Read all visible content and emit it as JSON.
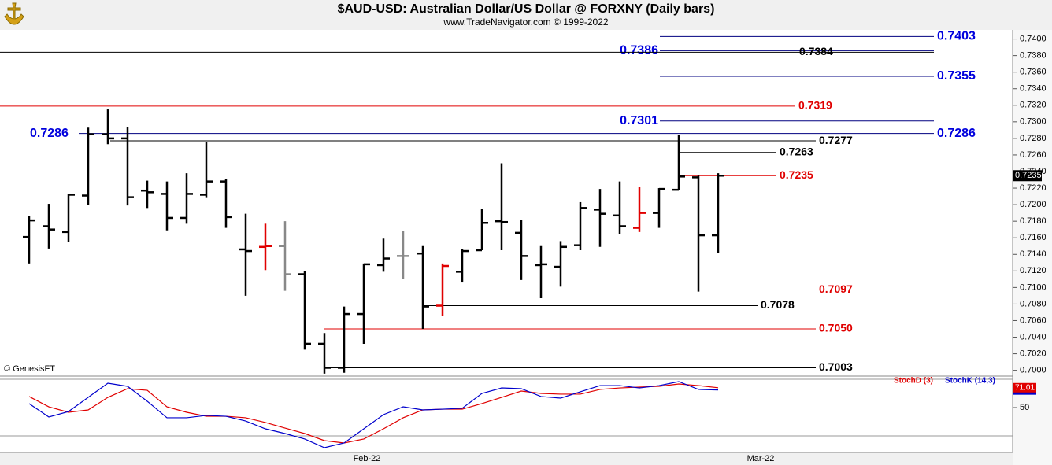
{
  "chart_data": [
    {
      "type": "ohlc",
      "title": "$AUD-USD:  Australian Dollar/US Dollar @ FORXNY  (Daily bars)",
      "subtitle": "www.TradeNavigator.com © 1999-2022",
      "credit": "© GenesisFT",
      "open": [
        0.7161,
        0.7174,
        0.7167,
        0.7211,
        0.7285,
        0.728,
        0.7217,
        0.7213,
        0.7184,
        0.7212,
        0.7228,
        0.7146,
        0.7149,
        0.715,
        0.7116,
        0.7032,
        0.7003,
        0.7068,
        0.7127,
        0.7138,
        0.7141,
        0.7078,
        0.7119,
        0.7145,
        0.718,
        0.7166,
        0.7127,
        0.7125,
        0.7151,
        0.7194,
        0.7187,
        0.7172,
        0.719,
        0.7218,
        0.7233,
        0.7163
      ],
      "high": [
        0.7186,
        0.7201,
        0.7213,
        0.7293,
        0.7315,
        0.7294,
        0.7229,
        0.7228,
        0.7238,
        0.7276,
        0.7231,
        0.7189,
        0.7177,
        0.718,
        0.712,
        0.7045,
        0.7077,
        0.7129,
        0.7159,
        0.7168,
        0.715,
        0.7129,
        0.7146,
        0.7195,
        0.725,
        0.7182,
        0.715,
        0.7156,
        0.7203,
        0.7219,
        0.7228,
        0.7221,
        0.722,
        0.7284,
        0.7235,
        0.7238
      ],
      "low": [
        0.7129,
        0.7147,
        0.7155,
        0.72,
        0.7273,
        0.7199,
        0.7196,
        0.7169,
        0.7177,
        0.7208,
        0.7172,
        0.709,
        0.7121,
        0.7096,
        0.7025,
        0.6996,
        0.6997,
        0.7032,
        0.7119,
        0.711,
        0.705,
        0.7066,
        0.7106,
        0.7145,
        0.7145,
        0.7109,
        0.7087,
        0.7101,
        0.7145,
        0.7149,
        0.7164,
        0.7167,
        0.7172,
        0.7218,
        0.7095,
        0.7142
      ],
      "close": [
        0.7181,
        0.717,
        0.7212,
        0.7285,
        0.728,
        0.7209,
        0.7215,
        0.7184,
        0.7213,
        0.7228,
        0.7185,
        0.7144,
        0.715,
        0.7116,
        0.7032,
        0.7003,
        0.7068,
        0.7128,
        0.7135,
        0.7138,
        0.7077,
        0.7126,
        0.7144,
        0.7178,
        0.7179,
        0.7138,
        0.7128,
        0.7149,
        0.7196,
        0.7189,
        0.7174,
        0.719,
        0.7219,
        0.7234,
        0.7163,
        0.7235
      ],
      "bar_colors": [
        "#000000",
        "#000000",
        "#000000",
        "#000000",
        "#000000",
        "#000000",
        "#000000",
        "#000000",
        "#000000",
        "#000000",
        "#000000",
        "#000000",
        "#e00000",
        "#888888",
        "#000000",
        "#000000",
        "#000000",
        "#000000",
        "#000000",
        "#888888",
        "#000000",
        "#e00000",
        "#000000",
        "#000000",
        "#000000",
        "#000000",
        "#000000",
        "#000000",
        "#000000",
        "#000000",
        "#000000",
        "#e00000",
        "#000000",
        "#000000",
        "#000000",
        "#000000"
      ],
      "ylim": [
        0.6993,
        0.7411
      ],
      "yticks": [
        {
          "value": 0.7,
          "label": "0.7000"
        },
        {
          "value": 0.702,
          "label": "0.7020"
        },
        {
          "value": 0.704,
          "label": "0.7040"
        },
        {
          "value": 0.706,
          "label": "0.7060"
        },
        {
          "value": 0.708,
          "label": "0.7080"
        },
        {
          "value": 0.71,
          "label": "0.7100"
        },
        {
          "value": 0.712,
          "label": "0.7120"
        },
        {
          "value": 0.714,
          "label": "0.7140"
        },
        {
          "value": 0.716,
          "label": "0.7160"
        },
        {
          "value": 0.718,
          "label": "0.7180"
        },
        {
          "value": 0.72,
          "label": "0.7200"
        },
        {
          "value": 0.722,
          "label": "0.7220"
        },
        {
          "value": 0.724,
          "label": "0.7240"
        },
        {
          "value": 0.726,
          "label": "0.7260"
        },
        {
          "value": 0.728,
          "label": "0.7280"
        },
        {
          "value": 0.73,
          "label": "0.7300"
        },
        {
          "value": 0.732,
          "label": "0.7320"
        },
        {
          "value": 0.734,
          "label": "0.7340"
        },
        {
          "value": 0.736,
          "label": "0.7360"
        },
        {
          "value": 0.738,
          "label": "0.7380"
        },
        {
          "value": 0.74,
          "label": "0.7400"
        }
      ],
      "x_labels": [
        "Feb-22",
        "Mar-22"
      ],
      "last_price": 0.7235,
      "levels": [
        {
          "value": 0.7403,
          "color": "#0000dd"
        },
        {
          "value": 0.7386,
          "color": "#0000dd"
        },
        {
          "value": 0.7384,
          "color": "#000000"
        },
        {
          "value": 0.7355,
          "color": "#0000dd"
        },
        {
          "value": 0.7319,
          "color": "#e00000"
        },
        {
          "value": 0.7301,
          "color": "#0000dd"
        },
        {
          "value": 0.7286,
          "color": "#0000dd"
        },
        {
          "value": 0.7277,
          "color": "#000000"
        },
        {
          "value": 0.7263,
          "color": "#000000"
        },
        {
          "value": 0.7235,
          "color": "#e00000"
        },
        {
          "value": 0.7097,
          "color": "#e00000"
        },
        {
          "value": 0.7078,
          "color": "#000000"
        },
        {
          "value": 0.705,
          "label": "0.7050",
          "color": "#e00000"
        },
        {
          "value": 0.7003,
          "color": "#000000"
        }
      ]
    },
    {
      "type": "line",
      "series": [
        {
          "name": "StochD (3)",
          "color": "#e00000",
          "values": [
            61.7,
            50.8,
            45,
            47.5,
            60.8,
            70,
            68.3,
            50.8,
            45,
            40.8,
            40.8,
            39.2,
            34.2,
            28.3,
            22.5,
            15,
            12.5,
            16.7,
            27.5,
            39.2,
            47.5,
            48.3,
            48.3,
            54.2,
            60.8,
            67.5,
            65,
            64.2,
            64.2,
            69.2,
            70.8,
            71.7,
            72.5,
            75,
            73.3,
            71.01
          ]
        },
        {
          "name": "StochK (14,3)",
          "color": "#0000cc",
          "values": [
            54.2,
            40,
            45.8,
            60.8,
            75.8,
            72.5,
            56.7,
            39.2,
            39.2,
            41.7,
            40.8,
            35.8,
            27.5,
            22.5,
            16.7,
            7.5,
            12.5,
            27.5,
            42.5,
            50.8,
            47.5,
            48.3,
            49.2,
            65,
            70.8,
            70,
            61.7,
            60,
            66.7,
            73.3,
            73.3,
            70.8,
            73.3,
            77.5,
            69.2,
            68.62
          ]
        }
      ],
      "ylim": [
        2.5,
        82.5
      ],
      "yticks": [
        50
      ],
      "guides": [
        20,
        80
      ]
    }
  ]
}
